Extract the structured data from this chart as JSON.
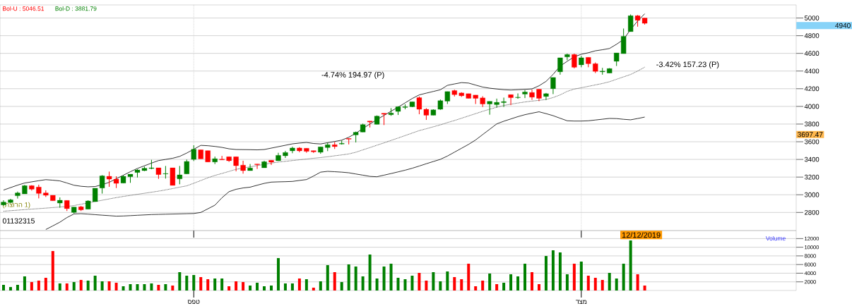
{
  "chart_data": [
    {
      "type": "candlestick",
      "categories": [
        null,
        null,
        null,
        null,
        null,
        null,
        null,
        null,
        null,
        null,
        null,
        null,
        null,
        null,
        null,
        null,
        null,
        null,
        null,
        null,
        null,
        null,
        null,
        null,
        null,
        null,
        null,
        null,
        null,
        null,
        null,
        null,
        null,
        null,
        null,
        null,
        null,
        null,
        null,
        null,
        null,
        null,
        null,
        null,
        null,
        null,
        null,
        null,
        null,
        null,
        null,
        null,
        null,
        null,
        null,
        null,
        null,
        null,
        null,
        null,
        null,
        null,
        null,
        null,
        null,
        null,
        null,
        null,
        null,
        null,
        null,
        null,
        null,
        null,
        null,
        null,
        null,
        null,
        null,
        null,
        null,
        null,
        null,
        null,
        null,
        null,
        null,
        null,
        null,
        null,
        null,
        null,
        null,
        null,
        null,
        null,
        null,
        null,
        null,
        null,
        null,
        null,
        null,
        null,
        null,
        null,
        null,
        null,
        null,
        null,
        null,
        null,
        null
      ],
      "ohlc": [
        [
          2885,
          2938,
          2877,
          2917
        ],
        [
          2912,
          2954,
          2906,
          2943
        ],
        [
          2989,
          3036,
          2957,
          3021
        ],
        [
          3010,
          3111,
          3010,
          3103
        ],
        [
          3103,
          3108,
          3047,
          3063
        ],
        [
          3087,
          3114,
          2959,
          3015
        ],
        [
          3021,
          3050,
          2975,
          2994
        ],
        [
          2994,
          2994,
          2933,
          2933
        ],
        [
          2906,
          2970,
          2853,
          2938
        ],
        [
          2936,
          2936,
          2816,
          2843
        ],
        [
          2800,
          2861,
          2789,
          2861
        ],
        [
          2864,
          2874,
          2816,
          2829
        ],
        [
          2837,
          2938,
          2837,
          2930
        ],
        [
          2922,
          3074,
          2922,
          3074
        ],
        [
          3076,
          3222,
          3013,
          3214
        ],
        [
          3209,
          3262,
          3090,
          3177
        ],
        [
          3177,
          3209,
          3076,
          3129
        ],
        [
          3132,
          3220,
          3132,
          3209
        ],
        [
          3204,
          3233,
          3135,
          3233
        ],
        [
          3252,
          3289,
          3196,
          3281
        ],
        [
          3273,
          3318,
          3268,
          3300
        ],
        [
          3297,
          3395,
          3289,
          3305
        ],
        [
          3305,
          3305,
          3180,
          3228
        ],
        [
          3236,
          3326,
          3183,
          3241
        ],
        [
          3305,
          3305,
          3106,
          3106
        ],
        [
          3180,
          3326,
          3119,
          3225
        ],
        [
          3236,
          3398,
          3236,
          3377
        ],
        [
          3400,
          3560,
          3382,
          3515
        ],
        [
          3509,
          3509,
          3406,
          3406
        ],
        [
          3499,
          3499,
          3371,
          3371
        ],
        [
          3371,
          3432,
          3347,
          3408
        ],
        [
          3403,
          3440,
          3395,
          3395
        ],
        [
          3430,
          3430,
          3372,
          3385
        ],
        [
          3430,
          3430,
          3265,
          3329
        ],
        [
          3335,
          3385,
          3239,
          3273
        ],
        [
          3273,
          3348,
          3273,
          3303
        ],
        [
          3348,
          3348,
          3292,
          3340
        ],
        [
          3305,
          3385,
          3305,
          3374
        ],
        [
          3390,
          3390,
          3337,
          3369
        ],
        [
          3385,
          3475,
          3385,
          3446
        ],
        [
          3441,
          3497,
          3417,
          3478
        ],
        [
          3497,
          3544,
          3470,
          3529
        ],
        [
          3529,
          3539,
          3481,
          3497
        ],
        [
          3526,
          3526,
          3475,
          3491
        ],
        [
          3499,
          3499,
          3473,
          3486
        ],
        [
          3481,
          3542,
          3464,
          3542
        ],
        [
          3534,
          3590,
          3494,
          3566
        ],
        [
          3566,
          3598,
          3518,
          3545
        ],
        [
          3574,
          3614,
          3568,
          3582
        ],
        [
          3637,
          3637,
          3570,
          3629
        ],
        [
          3677,
          3715,
          3592,
          3707
        ],
        [
          3709,
          3805,
          3709,
          3794
        ],
        [
          3834,
          3834,
          3762,
          3823
        ],
        [
          3797,
          3898,
          3797,
          3890
        ],
        [
          3922,
          3922,
          3789,
          3911
        ],
        [
          3906,
          3980,
          3893,
          3924
        ],
        [
          3943,
          4001,
          3903,
          3996
        ],
        [
          3988,
          4023,
          3967,
          3996
        ],
        [
          3996,
          4052,
          3991,
          4052
        ],
        [
          4099,
          4112,
          3911,
          3967
        ],
        [
          3967,
          3980,
          3847,
          3900
        ],
        [
          3900,
          3967,
          3900,
          3961
        ],
        [
          3967,
          4078,
          3961,
          4065
        ],
        [
          4059,
          4168,
          4027,
          4168
        ],
        [
          4179,
          4189,
          4112,
          4133
        ],
        [
          4152,
          4160,
          4107,
          4120
        ],
        [
          4144,
          4144,
          4091,
          4091
        ],
        [
          4128,
          4128,
          4027,
          4091
        ],
        [
          4096,
          4115,
          3993,
          4027
        ],
        [
          4027,
          4057,
          3906,
          4057
        ],
        [
          4020,
          4088,
          3988,
          4046
        ],
        [
          4043,
          4099,
          3993,
          4054
        ],
        [
          4133,
          4133,
          4014,
          4099
        ],
        [
          4099,
          4147,
          4086,
          4104
        ],
        [
          4139,
          4184,
          4094,
          4163
        ],
        [
          4157,
          4189,
          4073,
          4104
        ],
        [
          4194,
          4194,
          4059,
          4091
        ],
        [
          4112,
          4152,
          4073,
          4144
        ],
        [
          4200,
          4327,
          4139,
          4327
        ],
        [
          4391,
          4550,
          4359,
          4550
        ],
        [
          4560,
          4597,
          4523,
          4587
        ],
        [
          4587,
          4597,
          4430,
          4443
        ],
        [
          4470,
          4571,
          4443,
          4550
        ],
        [
          4555,
          4555,
          4443,
          4483
        ],
        [
          4483,
          4497,
          4377,
          4396
        ],
        [
          4391,
          4436,
          4359,
          4399
        ],
        [
          4377,
          4433,
          4377,
          4428
        ],
        [
          4510,
          4605,
          4457,
          4605
        ],
        [
          4597,
          4881,
          4597,
          4793
        ],
        [
          4846,
          5040,
          4846,
          5026
        ],
        [
          5026,
          5034,
          4902,
          4974
        ],
        [
          5000,
          5000,
          4926,
          4940
        ],
        null,
        null,
        null,
        null,
        null,
        null,
        null,
        null,
        null,
        null,
        null,
        null,
        null,
        null,
        null,
        null,
        null,
        null,
        null,
        null,
        null
      ],
      "colors": [
        "#008000",
        "#008000",
        "#008000",
        "#008000",
        "#ff0000",
        "#ff0000",
        "#ff0000",
        "#ff0000",
        "#008000",
        "#ff0000",
        "#008000",
        "#ff0000",
        "#008000",
        "#008000",
        "#008000",
        "#ff0000",
        "#ff0000",
        "#008000",
        "#008000",
        "#008000",
        "#008000",
        "#008000",
        "#ff0000",
        "#008000",
        "#ff0000",
        "#008000",
        "#008000",
        "#008000",
        "#ff0000",
        "#ff0000",
        "#008000",
        "#ff0000",
        "#ff0000",
        "#ff0000",
        "#ff0000",
        "#008000",
        "#ff0000",
        "#008000",
        "#ff0000",
        "#008000",
        "#008000",
        "#008000",
        "#ff0000",
        "#ff0000",
        "#ff0000",
        "#008000",
        "#008000",
        "#ff0000",
        "#008000",
        "#ff0000",
        "#008000",
        "#008000",
        "#ff0000",
        "#008000",
        "#ff0000",
        "#008000",
        "#008000",
        "#008000",
        "#008000",
        "#ff0000",
        "#ff0000",
        "#008000",
        "#008000",
        "#008000",
        "#ff0000",
        "#ff0000",
        "#ff0000",
        "#ff0000",
        "#ff0000",
        "#008000",
        "#008000",
        "#008000",
        "#ff0000",
        "#008000",
        "#008000",
        "#ff0000",
        "#ff0000",
        "#008000",
        "#008000",
        "#008000",
        "#008000",
        "#ff0000",
        "#008000",
        "#ff0000",
        "#ff0000",
        "#008000",
        "#008000",
        "#008000",
        "#008000",
        "#008000",
        "#ff0000",
        "#ff0000",
        null,
        null,
        null,
        null,
        null,
        null,
        null,
        null,
        null,
        null,
        null,
        null,
        null,
        null,
        null,
        null,
        null,
        null,
        null,
        null,
        null
      ],
      "series": [
        {
          "type": "line",
          "color": "#000000",
          "line_style": "solid",
          "values": [
            3053,
            3081,
            3109,
            3133,
            3146,
            3159,
            3171,
            3165,
            3157,
            3133,
            3108,
            3096,
            3090,
            3093,
            3114,
            3141,
            3181,
            3221,
            3261,
            3298,
            3328,
            3358,
            3387,
            3400,
            3413,
            3434,
            3472,
            3515,
            3559,
            3555,
            3547,
            3536,
            3520,
            3512,
            3511,
            3510,
            3508,
            3512,
            3528,
            3544,
            3560,
            3576,
            3585,
            3592,
            3580,
            3575,
            3589,
            3603,
            3618,
            3651,
            3696,
            3749,
            3801,
            3851,
            3898,
            3945,
            3991,
            4040,
            4089,
            4130,
            4150,
            4169,
            4188,
            4238,
            4254,
            4269,
            4264,
            4241,
            4219,
            4206,
            4197,
            4189,
            4185,
            4189,
            4193,
            4198,
            4233,
            4283,
            4362,
            4456,
            4510,
            4561,
            4590,
            4607,
            4629,
            4641,
            4655,
            4703,
            4757,
            4871,
            4966,
            5048,
            null,
            null,
            null,
            null,
            null,
            null,
            null,
            null,
            null,
            null,
            null,
            null,
            null,
            null,
            null,
            null,
            null,
            null,
            null,
            null,
            null
          ]
        },
        {
          "type": "line",
          "color": "#404040",
          "line_style": "dotted",
          "values": [
            2814,
            2820,
            2826,
            2832,
            2838,
            2843,
            2849,
            2855,
            2861,
            2867,
            2878,
            2893,
            2908,
            2923,
            2938,
            2953,
            2968,
            2981,
            2993,
            3005,
            3017,
            3029,
            3041,
            3055,
            3070,
            3086,
            3101,
            3130,
            3161,
            3192,
            3219,
            3241,
            3264,
            3288,
            3302,
            3316,
            3330,
            3344,
            3358,
            3370,
            3378,
            3387,
            3396,
            3404,
            3413,
            3421,
            3430,
            3441,
            3451,
            3462,
            3481,
            3508,
            3534,
            3561,
            3587,
            3615,
            3642,
            3670,
            3698,
            3726,
            3747,
            3769,
            3791,
            3817,
            3840,
            3866,
            3892,
            3918,
            3944,
            3968,
            3990,
            4010,
            4025,
            4038,
            4050,
            4060,
            4068,
            4078,
            4100,
            4130,
            4170,
            4196,
            4211,
            4227,
            4243,
            4259,
            4279,
            4307,
            4334,
            4361,
            4400,
            4444,
            null,
            null,
            null,
            null,
            null,
            null,
            null,
            null,
            null,
            null,
            null,
            null,
            null,
            null,
            null,
            null,
            null,
            null,
            null,
            null,
            null
          ]
        },
        {
          "type": "line",
          "color": "#000000",
          "line_style": "solid",
          "values": [
            null,
            null,
            null,
            null,
            null,
            null,
            2607,
            2648,
            2690,
            2742,
            2783,
            2786,
            2781,
            2775,
            2769,
            2764,
            2758,
            2760,
            2764,
            2768,
            2772,
            2776,
            2778,
            2780,
            2782,
            2784,
            2786,
            2788,
            2800,
            2841,
            2882,
            2966,
            3035,
            3062,
            3077,
            3086,
            3108,
            3129,
            3143,
            3146,
            3148,
            3151,
            3162,
            3172,
            3212,
            3256,
            3265,
            3261,
            3256,
            3249,
            3235,
            3222,
            3208,
            3204,
            3222,
            3240,
            3259,
            3278,
            3300,
            3325,
            3351,
            3376,
            3401,
            3438,
            3482,
            3526,
            3570,
            3620,
            3681,
            3741,
            3802,
            3832,
            3858,
            3884,
            3906,
            3923,
            3939,
            3918,
            3895,
            3866,
            3837,
            3834,
            3834,
            3837,
            3846,
            3855,
            3864,
            3862,
            3854,
            3848,
            3863,
            3879,
            null,
            null,
            null,
            null,
            null,
            null,
            null,
            null,
            null,
            null,
            null,
            null,
            null,
            null,
            null,
            null,
            null,
            null,
            null,
            null,
            null
          ]
        }
      ],
      "ylim": [
        2595,
        5148
      ],
      "yticks": [
        2800,
        3000,
        3200,
        3400,
        3600,
        3800,
        4000,
        4200,
        4400,
        4600,
        4800,
        5000
      ],
      "grid": true,
      "tick_labels": "y",
      "annotations": [
        "Bol-U : 5046.51",
        "Bol-D : 3881.79",
        "(תצורה 1)",
        "01132315",
        "-4.74% 194.97 (P)",
        "-3.42% 157.23 (P)",
        "4940",
        "3697.47"
      ]
    },
    {
      "type": "bar",
      "categories": [
        null,
        null,
        null,
        null,
        null,
        null,
        null,
        null,
        null,
        null,
        null,
        null,
        null,
        null,
        null,
        null,
        null,
        null,
        null,
        null,
        null,
        null,
        null,
        null,
        null,
        null,
        null,
        "ספט",
        null,
        null,
        null,
        null,
        null,
        null,
        null,
        null,
        null,
        null,
        null,
        null,
        null,
        null,
        null,
        null,
        null,
        null,
        null,
        null,
        null,
        null,
        null,
        null,
        null,
        null,
        null,
        null,
        null,
        null,
        null,
        null,
        null,
        null,
        null,
        null,
        null,
        null,
        null,
        null,
        null,
        null,
        null,
        null,
        null,
        null,
        null,
        null,
        null,
        null,
        null,
        null,
        null,
        null,
        "דצמ",
        null,
        null,
        null,
        null,
        null,
        null,
        null,
        null,
        null,
        null,
        null,
        null,
        null,
        null,
        null,
        null,
        null,
        null,
        null,
        null,
        null,
        null,
        null,
        null,
        null,
        null,
        null,
        null,
        null,
        null
      ],
      "values": [
        1300,
        800,
        1300,
        3260,
        1950,
        2280,
        2930,
        9120,
        1630,
        1630,
        1950,
        2440,
        2280,
        3420,
        2120,
        2120,
        1790,
        980,
        1470,
        1470,
        1470,
        1630,
        1300,
        1470,
        1140,
        4240,
        3420,
        3580,
        3100,
        2610,
        2770,
        2770,
        980,
        2120,
        1950,
        1140,
        1790,
        980,
        1140,
        7490,
        1630,
        1630,
        2770,
        2610,
        650,
        2120,
        5860,
        4240,
        1950,
        6030,
        5540,
        3260,
        8310,
        2770,
        5540,
        6190,
        2930,
        2610,
        3420,
        4070,
        2280,
        4240,
        2120,
        4400,
        3100,
        2610,
        6190,
        980,
        2280,
        3910,
        1470,
        1790,
        3750,
        3260,
        6190,
        4240,
        1470,
        7980,
        9290,
        8800,
        3750,
        6190,
        6680,
        3420,
        2930,
        2440,
        4070,
        2770,
        6190,
        11570,
        3750,
        1140,
        null,
        null,
        null,
        null,
        null,
        null,
        null,
        null,
        null,
        null,
        null,
        null,
        null,
        null,
        null,
        null,
        null,
        null,
        null,
        null,
        null
      ],
      "colors": [
        "#008000",
        "#008000",
        "#008000",
        "#008000",
        "#ff0000",
        "#ff0000",
        "#ff0000",
        "#ff0000",
        "#008000",
        "#ff0000",
        "#008000",
        "#ff0000",
        "#008000",
        "#008000",
        "#008000",
        "#ff0000",
        "#ff0000",
        "#008000",
        "#008000",
        "#008000",
        "#008000",
        "#008000",
        "#ff0000",
        "#008000",
        "#ff0000",
        "#008000",
        "#008000",
        "#008000",
        "#ff0000",
        "#ff0000",
        "#008000",
        "#008000",
        "#ff0000",
        "#ff0000",
        "#ff0000",
        "#008000",
        "#008000",
        "#008000",
        "#008000",
        "#008000",
        "#008000",
        "#008000",
        "#ff0000",
        "#008000",
        "#ff0000",
        "#008000",
        "#008000",
        "#ff0000",
        "#008000",
        "#008000",
        "#008000",
        "#008000",
        "#008000",
        "#008000",
        "#008000",
        "#008000",
        "#008000",
        "#008000",
        "#008000",
        "#ff0000",
        "#ff0000",
        "#008000",
        "#008000",
        "#008000",
        "#ff0000",
        "#ff0000",
        "#ff0000",
        "#ff0000",
        "#ff0000",
        "#008000",
        "#ff0000",
        "#008000",
        "#008000",
        "#008000",
        "#008000",
        "#ff0000",
        "#ff0000",
        "#008000",
        "#008000",
        "#008000",
        "#008000",
        "#ff0000",
        "#008000",
        "#ff0000",
        "#ff0000",
        "#ff0000",
        "#008000",
        "#008000",
        "#008000",
        "#008000",
        "#ff0000",
        "#ff0000",
        null,
        null,
        null,
        null,
        null,
        null,
        null,
        null,
        null,
        null,
        null,
        null,
        null,
        null,
        null,
        null,
        null,
        null,
        null,
        null,
        null
      ],
      "ylabel": "Volume",
      "ylim": [
        0,
        13855
      ],
      "yticks": [
        2000,
        4000,
        6000,
        8000,
        10000,
        12000
      ],
      "grid": "y",
      "annotations": [
        "12/12/2019"
      ]
    }
  ]
}
